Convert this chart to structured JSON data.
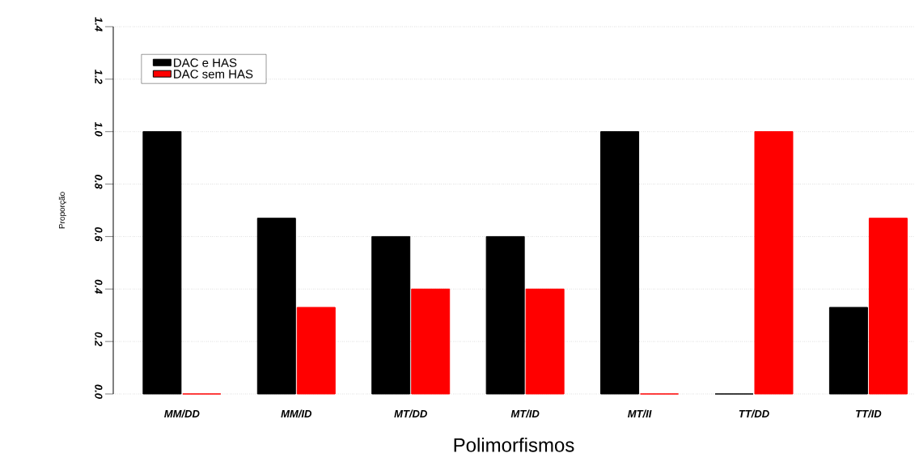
{
  "chart_data": {
    "type": "bar",
    "xlabel": "Polimorfismos",
    "ylabel": "Proporção",
    "categories": [
      "MM/DD",
      "MM/ID",
      "MT/DD",
      "MT/ID",
      "MT/II",
      "TT/DD",
      "TT/ID"
    ],
    "series": [
      {
        "name": "DAC e HAS",
        "color": "#000000",
        "values": [
          1.0,
          0.67,
          0.6,
          0.6,
          1.0,
          0,
          0.33
        ]
      },
      {
        "name": "DAC sem HAS",
        "color": "#ff0000",
        "values": [
          0,
          0.33,
          0.4,
          0.4,
          0,
          1.0,
          0.67
        ]
      }
    ],
    "ylim": [
      0,
      1.4
    ],
    "yticks": [
      {
        "value": 0,
        "label": "0.0"
      },
      {
        "value": 0.2,
        "label": "0.2"
      },
      {
        "value": 0.4,
        "label": "0.4"
      },
      {
        "value": 0.6,
        "label": "0.6"
      },
      {
        "value": 0.8,
        "label": "0.8"
      },
      {
        "value": 1.0,
        "label": "1.0"
      },
      {
        "value": 1.2,
        "label": "1.2"
      },
      {
        "value": 1.4,
        "label": "1.4"
      }
    ],
    "grid": "y",
    "legend": "top left"
  }
}
